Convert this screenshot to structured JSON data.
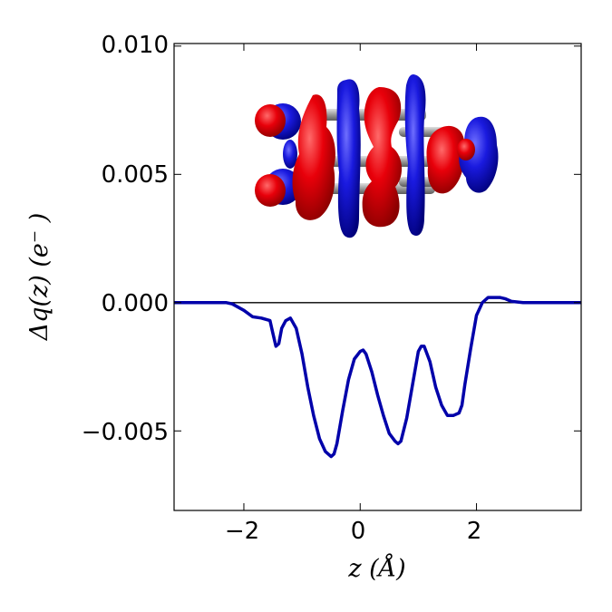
{
  "chart_data": {
    "type": "line",
    "title": "",
    "xlabel": "z (Å)",
    "ylabel": "Δq(z) (e⁻ )",
    "xlim": [
      -3.2,
      3.8
    ],
    "ylim": [
      -0.0081,
      0.0101
    ],
    "xticks": [
      -2,
      0,
      2
    ],
    "xtick_labels": [
      "−2",
      "0",
      "2"
    ],
    "yticks": [
      0.01,
      0.005,
      0.0,
      -0.005
    ],
    "ytick_labels": [
      "0.010",
      "0.005",
      "0.000",
      "−0.005"
    ],
    "zero_line": true,
    "grid": false,
    "legend": "none",
    "inset": "charge density isosurface rendering of molecule (red and blue lobes)",
    "series": [
      {
        "color": "#0000aa",
        "x": [
          -3.2,
          -2.6,
          -2.3,
          -2.2,
          -2.0,
          -1.85,
          -1.7,
          -1.55,
          -1.5,
          -1.45,
          -1.4,
          -1.35,
          -1.28,
          -1.2,
          -1.1,
          -1.0,
          -0.9,
          -0.8,
          -0.7,
          -0.6,
          -0.5,
          -0.45,
          -0.4,
          -0.3,
          -0.2,
          -0.1,
          0.0,
          0.05,
          0.1,
          0.2,
          0.3,
          0.4,
          0.5,
          0.6,
          0.65,
          0.7,
          0.8,
          0.9,
          1.0,
          1.05,
          1.1,
          1.2,
          1.3,
          1.4,
          1.5,
          1.6,
          1.7,
          1.75,
          1.8,
          1.9,
          2.0,
          2.1,
          2.2,
          2.3,
          2.4,
          2.5,
          2.6,
          2.8,
          2.9,
          3.0,
          3.8
        ],
        "y": [
          0.0,
          0.0,
          0.0,
          -5e-05,
          -0.0003,
          -0.00055,
          -0.0006,
          -0.0007,
          -0.0012,
          -0.0017,
          -0.0016,
          -0.001,
          -0.0007,
          -0.0006,
          -0.001,
          -0.002,
          -0.0033,
          -0.0044,
          -0.0053,
          -0.0058,
          -0.006,
          -0.0059,
          -0.0055,
          -0.0042,
          -0.003,
          -0.0022,
          -0.0019,
          -0.00185,
          -0.002,
          -0.0027,
          -0.0036,
          -0.0044,
          -0.0051,
          -0.0054,
          -0.0055,
          -0.0054,
          -0.0045,
          -0.0032,
          -0.0019,
          -0.0017,
          -0.0017,
          -0.0023,
          -0.0033,
          -0.004,
          -0.0044,
          -0.0044,
          -0.0043,
          -0.004,
          -0.0032,
          -0.0018,
          -0.0005,
          0.0,
          0.0002,
          0.0002,
          0.0002,
          0.00015,
          5e-05,
          0.0,
          0.0,
          0.0,
          0.0
        ]
      }
    ]
  },
  "colors": {
    "curve": "#0000aa",
    "lobe_red": "#e8000a",
    "lobe_blue": "#1a1adf",
    "atom_gray": "#9a9a9a"
  }
}
